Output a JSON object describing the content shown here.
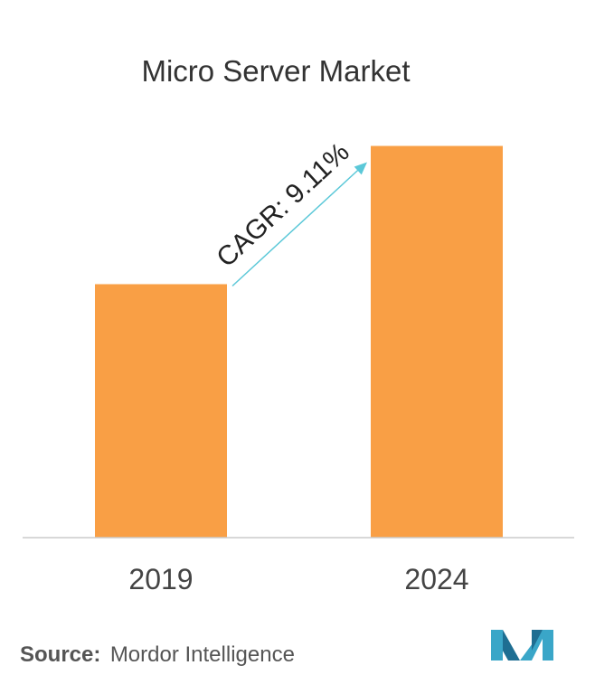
{
  "chart_data": {
    "type": "bar",
    "title": "Micro Server Market",
    "categories": [
      "2019",
      "2024"
    ],
    "values": [
      0.55,
      0.85
    ],
    "ylim": [
      0,
      1
    ],
    "grid": false,
    "legend": "none",
    "annotation": {
      "text": "CAGR: 9.11%",
      "from": "2019",
      "to": "2024"
    },
    "xlabel": "",
    "ylabel": ""
  },
  "colors": {
    "bar": "#F99F45",
    "arrow": "#5BC8D8",
    "axis": "#CCCCCC",
    "logo_primary": "#3AA6C8",
    "logo_secondary": "#1E6E92"
  },
  "source": {
    "label": "Source:",
    "value": "Mordor Intelligence"
  },
  "logo": {
    "icon": "mordor-intelligence-logo-icon"
  }
}
